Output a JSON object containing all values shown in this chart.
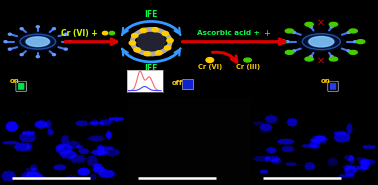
{
  "bg_color": "#000000",
  "schematic": {
    "text_cr6": "Cr (VI) +",
    "text_ascorbic": "Ascorbic acid +",
    "text_ife_top": "IFE",
    "text_ife_bot": "IFE",
    "text_cr6b": "Cr (VI)",
    "text_cr3": "Cr (III)",
    "text_on_left": "on",
    "text_on_right": "on",
    "text_off": "off",
    "on_color": "#ffcc00",
    "cr6_text_color": "#ccff00",
    "ascorbic_text_color": "#00ff44",
    "ife_color": "#00ff44",
    "cr_label_color": "#ffcc00",
    "arrow_red": "#dd0000",
    "arrow_blue": "#3399ff",
    "dot_yellow": "#ffcc00",
    "dot_green": "#44cc00",
    "cross_red": "#cc0000",
    "ring_gray": "#999999",
    "cqd_blue_outer": "#2255cc",
    "cqd_blue_center": "#99ccff",
    "cqd_spike": "#5577ff",
    "vial_green_top": "#00ff44",
    "vial_blue_top": "#4444ff",
    "cyan_plus": "#00ffff"
  }
}
